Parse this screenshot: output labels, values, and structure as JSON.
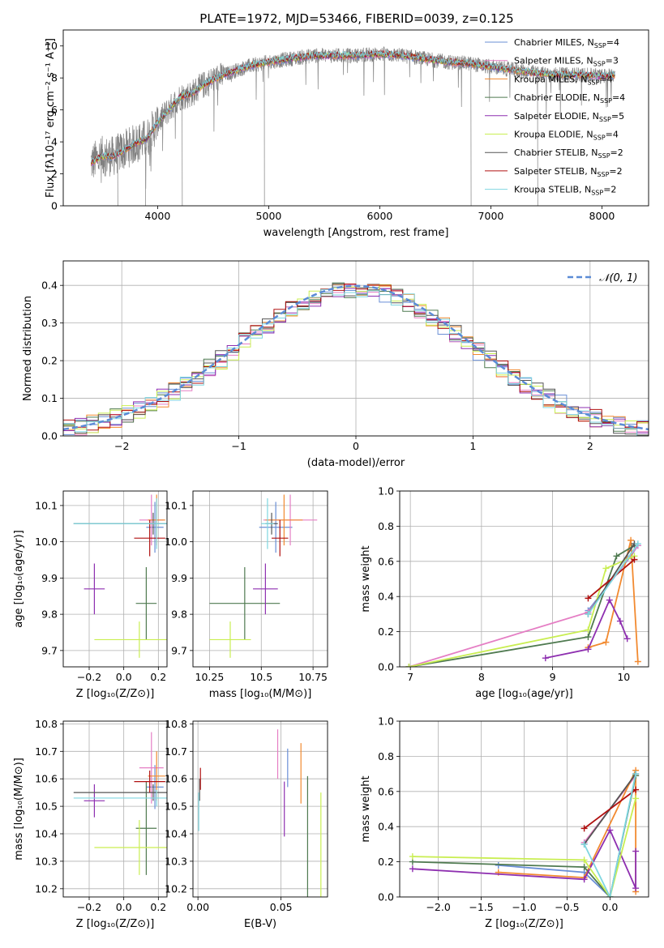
{
  "figure_title": "PLATE=1972, MJD=53466, FIBERID=0039, z=0.125",
  "colors": {
    "chabrier_miles": "#6a8fd6",
    "salpeter_miles": "#e57ec4",
    "kroupa_miles": "#f28a30",
    "chabrier_elodie": "#4f7a50",
    "salpeter_elodie": "#8e2fb0",
    "kroupa_elodie": "#c9ee52",
    "chabrier_stelib": "#555555",
    "salpeter_stelib": "#b01010",
    "kroupa_stelib": "#7fd6e0",
    "data": "#808080",
    "normal": "#5b8bd6"
  },
  "chart_data": [
    {
      "type": "line",
      "id": "spectrum",
      "xlabel": "wavelength [Angstrom, rest frame]",
      "ylabel": "Flux [fλ10⁻¹⁷ erg cm⁻² s⁻¹ A⁻¹]",
      "xlim": [
        3150,
        8420
      ],
      "ylim": [
        0,
        11
      ],
      "xticks": [
        4000,
        5000,
        6000,
        7000,
        8000
      ],
      "yticks": [
        0,
        2,
        4,
        6,
        8,
        10
      ],
      "grid": false,
      "legend_placement": "right",
      "legend": [
        {
          "key": "chabrier_miles",
          "label": "Chabrier MILES, N",
          "sub": "SSP",
          "suffix": "=4"
        },
        {
          "key": "salpeter_miles",
          "label": "Salpeter MILES, N",
          "sub": "SSP",
          "suffix": "=3"
        },
        {
          "key": "kroupa_miles",
          "label": "Kroupa MILES, N",
          "sub": "SSP",
          "suffix": "=4"
        },
        {
          "key": "chabrier_elodie",
          "label": "Chabrier ELODIE, N",
          "sub": "SSP",
          "suffix": "=4"
        },
        {
          "key": "salpeter_elodie",
          "label": "Salpeter ELODIE, N",
          "sub": "SSP",
          "suffix": "=5"
        },
        {
          "key": "kroupa_elodie",
          "label": "Kroupa ELODIE, N",
          "sub": "SSP",
          "suffix": "=4"
        },
        {
          "key": "chabrier_stelib",
          "label": "Chabrier STELIB, N",
          "sub": "SSP",
          "suffix": "=2"
        },
        {
          "key": "salpeter_stelib",
          "label": "Salpeter STELIB, N",
          "sub": "SSP",
          "suffix": "=2"
        },
        {
          "key": "kroupa_stelib",
          "label": "Kroupa STELIB, N",
          "sub": "SSP",
          "suffix": "=2"
        }
      ],
      "model_continuum": [
        [
          3400,
          2.7
        ],
        [
          3500,
          3.1
        ],
        [
          3600,
          3.1
        ],
        [
          3700,
          3.5
        ],
        [
          3800,
          3.9
        ],
        [
          3900,
          4.2
        ],
        [
          4000,
          5.2
        ],
        [
          4100,
          6.0
        ],
        [
          4200,
          6.8
        ],
        [
          4300,
          7.0
        ],
        [
          4400,
          7.5
        ],
        [
          4500,
          7.9
        ],
        [
          4600,
          8.2
        ],
        [
          4800,
          8.7
        ],
        [
          5000,
          9.0
        ],
        [
          5200,
          9.2
        ],
        [
          5400,
          9.4
        ],
        [
          5600,
          9.4
        ],
        [
          5800,
          9.4
        ],
        [
          6000,
          9.5
        ],
        [
          6200,
          9.4
        ],
        [
          6400,
          9.2
        ],
        [
          6600,
          9.0
        ],
        [
          6800,
          8.9
        ],
        [
          7000,
          8.7
        ],
        [
          7200,
          8.5
        ],
        [
          7400,
          8.3
        ],
        [
          7600,
          8.2
        ],
        [
          7800,
          8.2
        ],
        [
          8000,
          8.1
        ],
        [
          8100,
          8.2
        ]
      ]
    },
    {
      "type": "histogram",
      "id": "residuals",
      "xlabel": "(data-model)/error",
      "ylabel": "Normed distribution",
      "xlim": [
        -2.5,
        2.5
      ],
      "ylim": [
        0,
        0.465
      ],
      "xticks": [
        -2,
        -1,
        0,
        1,
        2
      ],
      "yticks": [
        0.0,
        0.1,
        0.2,
        0.3,
        0.4
      ],
      "grid": true,
      "legend_placement": "top-right",
      "reference_curve": {
        "label": "𝒩(0, 1)",
        "mean": 0,
        "sigma": 1
      },
      "bin_width": 0.1
    },
    {
      "type": "scatter",
      "id": "age_vs_Z",
      "xlabel": "Z [log₁₀(Z/Z⊙)]",
      "ylabel": "age  [log₁₀(age/yr)]",
      "xlim": [
        -0.35,
        0.25
      ],
      "ylim": [
        9.655,
        10.14
      ],
      "xticks": [
        -0.2,
        0.0,
        0.2
      ],
      "yticks": [
        9.7,
        9.8,
        9.9,
        10.0,
        10.1
      ],
      "grid": true,
      "points": [
        {
          "key": "chabrier_miles",
          "x": 0.18,
          "xerr": 0.05,
          "y": 10.04,
          "yerr": 0.07
        },
        {
          "key": "salpeter_miles",
          "x": 0.16,
          "xerr": 0.07,
          "y": 10.06,
          "yerr": 0.07
        },
        {
          "key": "kroupa_miles",
          "x": 0.19,
          "xerr": 0.05,
          "y": 10.06,
          "yerr": 0.07
        },
        {
          "key": "chabrier_elodie",
          "x": 0.13,
          "xerr": 0.06,
          "y": 9.83,
          "yerr": 0.1
        },
        {
          "key": "salpeter_elodie",
          "x": -0.17,
          "xerr": 0.06,
          "y": 9.87,
          "yerr": 0.07
        },
        {
          "key": "kroupa_elodie",
          "x": 0.09,
          "xerr": 0.26,
          "y": 9.73,
          "yerr": 0.05
        },
        {
          "key": "chabrier_stelib",
          "x": 0.17,
          "xerr": 0.46,
          "y": 10.05,
          "yerr": 0.03
        },
        {
          "key": "salpeter_stelib",
          "x": 0.15,
          "xerr": 0.09,
          "y": 10.01,
          "yerr": 0.05
        },
        {
          "key": "kroupa_stelib",
          "x": 0.19,
          "xerr": 0.48,
          "y": 10.05,
          "yerr": 0.07
        }
      ]
    },
    {
      "type": "scatter",
      "id": "age_vs_mass",
      "xlabel": "mass [log₁₀(M/M⊙)]",
      "ylabel": "",
      "xlim": [
        10.17,
        10.82
      ],
      "ylim": [
        9.655,
        10.14
      ],
      "xticks": [
        10.25,
        10.5,
        10.75
      ],
      "yticks": [
        9.7,
        9.8,
        9.9,
        10.0,
        10.1
      ],
      "grid": true,
      "points": [
        {
          "key": "chabrier_miles",
          "x": 10.57,
          "xerr": 0.08,
          "y": 10.04,
          "yerr": 0.07
        },
        {
          "key": "salpeter_miles",
          "x": 10.64,
          "xerr": 0.13,
          "y": 10.06,
          "yerr": 0.07
        },
        {
          "key": "kroupa_miles",
          "x": 10.61,
          "xerr": 0.09,
          "y": 10.06,
          "yerr": 0.07
        },
        {
          "key": "chabrier_elodie",
          "x": 10.42,
          "xerr": 0.17,
          "y": 9.83,
          "yerr": 0.1
        },
        {
          "key": "salpeter_elodie",
          "x": 10.52,
          "xerr": 0.06,
          "y": 9.87,
          "yerr": 0.07
        },
        {
          "key": "kroupa_elodie",
          "x": 10.35,
          "xerr": 0.1,
          "y": 9.73,
          "yerr": 0.05
        },
        {
          "key": "chabrier_stelib",
          "x": 10.55,
          "xerr": 0.03,
          "y": 10.05,
          "yerr": 0.03
        },
        {
          "key": "salpeter_stelib",
          "x": 10.59,
          "xerr": 0.04,
          "y": 10.01,
          "yerr": 0.05
        },
        {
          "key": "kroupa_stelib",
          "x": 10.53,
          "xerr": 0.03,
          "y": 10.05,
          "yerr": 0.07
        }
      ]
    },
    {
      "type": "line",
      "id": "weight_vs_age",
      "xlabel": "age  [log₁₀(age/yr)]",
      "ylabel": "mass weight",
      "xlim": [
        6.85,
        10.35
      ],
      "ylim": [
        0,
        1.0
      ],
      "xticks": [
        7,
        8,
        9,
        10
      ],
      "yticks": [
        0.0,
        0.2,
        0.4,
        0.6,
        0.8,
        1.0
      ],
      "grid": true,
      "series": [
        {
          "key": "chabrier_miles",
          "x": [
            9.5,
            10.1,
            10.2
          ],
          "y": [
            0.32,
            0.63,
            0.69
          ]
        },
        {
          "key": "salpeter_miles",
          "x": [
            6.98,
            9.5,
            10.2
          ],
          "y": [
            0.0,
            0.31,
            0.69
          ]
        },
        {
          "key": "kroupa_miles",
          "x": [
            9.5,
            9.75,
            10.1,
            10.2
          ],
          "y": [
            0.11,
            0.14,
            0.72,
            0.03
          ]
        },
        {
          "key": "chabrier_elodie",
          "x": [
            6.98,
            9.5,
            9.9,
            10.15
          ],
          "y": [
            0.0,
            0.17,
            0.63,
            0.69
          ]
        },
        {
          "key": "salpeter_elodie",
          "x": [
            8.9,
            9.5,
            9.8,
            9.95,
            10.05
          ],
          "y": [
            0.05,
            0.1,
            0.38,
            0.26,
            0.16
          ]
        },
        {
          "key": "kroupa_elodie",
          "x": [
            6.98,
            9.5,
            9.75,
            10.15
          ],
          "y": [
            0.0,
            0.21,
            0.56,
            0.63
          ]
        },
        {
          "key": "chabrier_stelib",
          "x": [
            9.5,
            10.15
          ],
          "y": [
            0.3,
            0.7
          ]
        },
        {
          "key": "salpeter_stelib",
          "x": [
            9.5,
            10.15
          ],
          "y": [
            0.39,
            0.61
          ]
        },
        {
          "key": "kroupa_stelib",
          "x": [
            9.5,
            10.2
          ],
          "y": [
            0.3,
            0.7
          ]
        }
      ]
    },
    {
      "type": "scatter",
      "id": "mass_vs_Z",
      "xlabel": "Z [log₁₀(Z/Z⊙)]",
      "ylabel": "mass [log₁₀(M/M⊙)]",
      "xlim": [
        -0.35,
        0.25
      ],
      "ylim": [
        10.17,
        10.81
      ],
      "xticks": [
        -0.2,
        0.0,
        0.2
      ],
      "yticks": [
        10.2,
        10.3,
        10.4,
        10.5,
        10.6,
        10.7,
        10.8
      ],
      "grid": true,
      "points": [
        {
          "key": "chabrier_miles",
          "x": 0.18,
          "xerr": 0.05,
          "y": 10.57,
          "yerr": 0.08
        },
        {
          "key": "salpeter_miles",
          "x": 0.16,
          "xerr": 0.07,
          "y": 10.64,
          "yerr": 0.13
        },
        {
          "key": "kroupa_miles",
          "x": 0.19,
          "xerr": 0.05,
          "y": 10.61,
          "yerr": 0.09
        },
        {
          "key": "chabrier_elodie",
          "x": 0.13,
          "xerr": 0.06,
          "y": 10.42,
          "yerr": 0.17
        },
        {
          "key": "salpeter_elodie",
          "x": -0.17,
          "xerr": 0.06,
          "y": 10.52,
          "yerr": 0.06
        },
        {
          "key": "kroupa_elodie",
          "x": 0.09,
          "xerr": 0.26,
          "y": 10.35,
          "yerr": 0.1
        },
        {
          "key": "chabrier_stelib",
          "x": 0.17,
          "xerr": 0.46,
          "y": 10.55,
          "yerr": 0.03
        },
        {
          "key": "salpeter_stelib",
          "x": 0.15,
          "xerr": 0.09,
          "y": 10.59,
          "yerr": 0.04
        },
        {
          "key": "kroupa_stelib",
          "x": 0.19,
          "xerr": 0.48,
          "y": 10.53,
          "yerr": 0.03
        }
      ]
    },
    {
      "type": "scatter",
      "id": "mass_vs_ebv",
      "xlabel": "E(B-V)",
      "ylabel": "",
      "xlim": [
        -0.003,
        0.078
      ],
      "ylim": [
        10.17,
        10.81
      ],
      "xticks": [
        0.0,
        0.05
      ],
      "yticks": [
        10.2,
        10.3,
        10.4,
        10.5,
        10.6,
        10.7,
        10.8
      ],
      "grid": true,
      "points": [
        {
          "key": "chabrier_miles",
          "x": 0.054,
          "xerr": 0,
          "y": 10.64,
          "yerr": 0.07
        },
        {
          "key": "salpeter_miles",
          "x": 0.048,
          "xerr": 0,
          "y": 10.69,
          "yerr": 0.09
        },
        {
          "key": "kroupa_miles",
          "x": 0.062,
          "xerr": 0,
          "y": 10.62,
          "yerr": 0.11
        },
        {
          "key": "chabrier_elodie",
          "x": 0.066,
          "xerr": 0,
          "y": 10.39,
          "yerr": 0.22
        },
        {
          "key": "salpeter_elodie",
          "x": 0.052,
          "xerr": 0,
          "y": 10.49,
          "yerr": 0.1
        },
        {
          "key": "kroupa_elodie",
          "x": 0.074,
          "xerr": 0,
          "y": 10.35,
          "yerr": 0.2
        },
        {
          "key": "chabrier_stelib",
          "x": 0.001,
          "xerr": 0,
          "y": 10.56,
          "yerr": 0.04
        },
        {
          "key": "salpeter_stelib",
          "x": 0.0015,
          "xerr": 0,
          "y": 10.6,
          "yerr": 0.04
        },
        {
          "key": "kroupa_stelib",
          "x": 0.0005,
          "xerr": 0,
          "y": 10.48,
          "yerr": 0.07
        }
      ]
    },
    {
      "type": "line",
      "id": "weight_vs_Z",
      "xlabel": "Z [log₁₀(Z/Z⊙)]",
      "ylabel": "mass weight",
      "xlim": [
        -2.45,
        0.45
      ],
      "ylim": [
        0,
        1.0
      ],
      "xticks": [
        -2.0,
        -1.5,
        -1.0,
        -0.5,
        0.0
      ],
      "yticks": [
        0.0,
        0.2,
        0.4,
        0.6,
        0.8,
        1.0
      ],
      "grid": true,
      "series": [
        {
          "key": "chabrier_miles",
          "x": [
            -1.3,
            -0.3,
            0.0,
            0.3
          ],
          "y": [
            0.18,
            0.14,
            0.0,
            0.69
          ]
        },
        {
          "key": "salpeter_miles",
          "x": [
            -0.3,
            0.3
          ],
          "y": [
            0.31,
            0.69
          ]
        },
        {
          "key": "kroupa_miles",
          "x": [
            -1.3,
            -0.3,
            0.3,
            0.3
          ],
          "y": [
            0.14,
            0.11,
            0.72,
            0.03
          ]
        },
        {
          "key": "chabrier_elodie",
          "x": [
            -2.3,
            -0.3,
            0.0,
            0.3
          ],
          "y": [
            0.2,
            0.17,
            0.0,
            0.69
          ]
        },
        {
          "key": "salpeter_elodie",
          "x": [
            -2.3,
            -0.3,
            0.0,
            0.3,
            0.3
          ],
          "y": [
            0.16,
            0.1,
            0.38,
            0.05,
            0.26
          ]
        },
        {
          "key": "kroupa_elodie",
          "x": [
            -2.3,
            -0.3,
            0.0,
            0.3
          ],
          "y": [
            0.23,
            0.21,
            0.0,
            0.56
          ]
        },
        {
          "key": "chabrier_stelib",
          "x": [
            -0.3,
            0.3
          ],
          "y": [
            0.3,
            0.7
          ]
        },
        {
          "key": "salpeter_stelib",
          "x": [
            -0.3,
            0.3
          ],
          "y": [
            0.39,
            0.61
          ]
        },
        {
          "key": "kroupa_stelib",
          "x": [
            -0.3,
            0.0,
            0.3
          ],
          "y": [
            0.3,
            0.0,
            0.7
          ]
        }
      ]
    }
  ]
}
